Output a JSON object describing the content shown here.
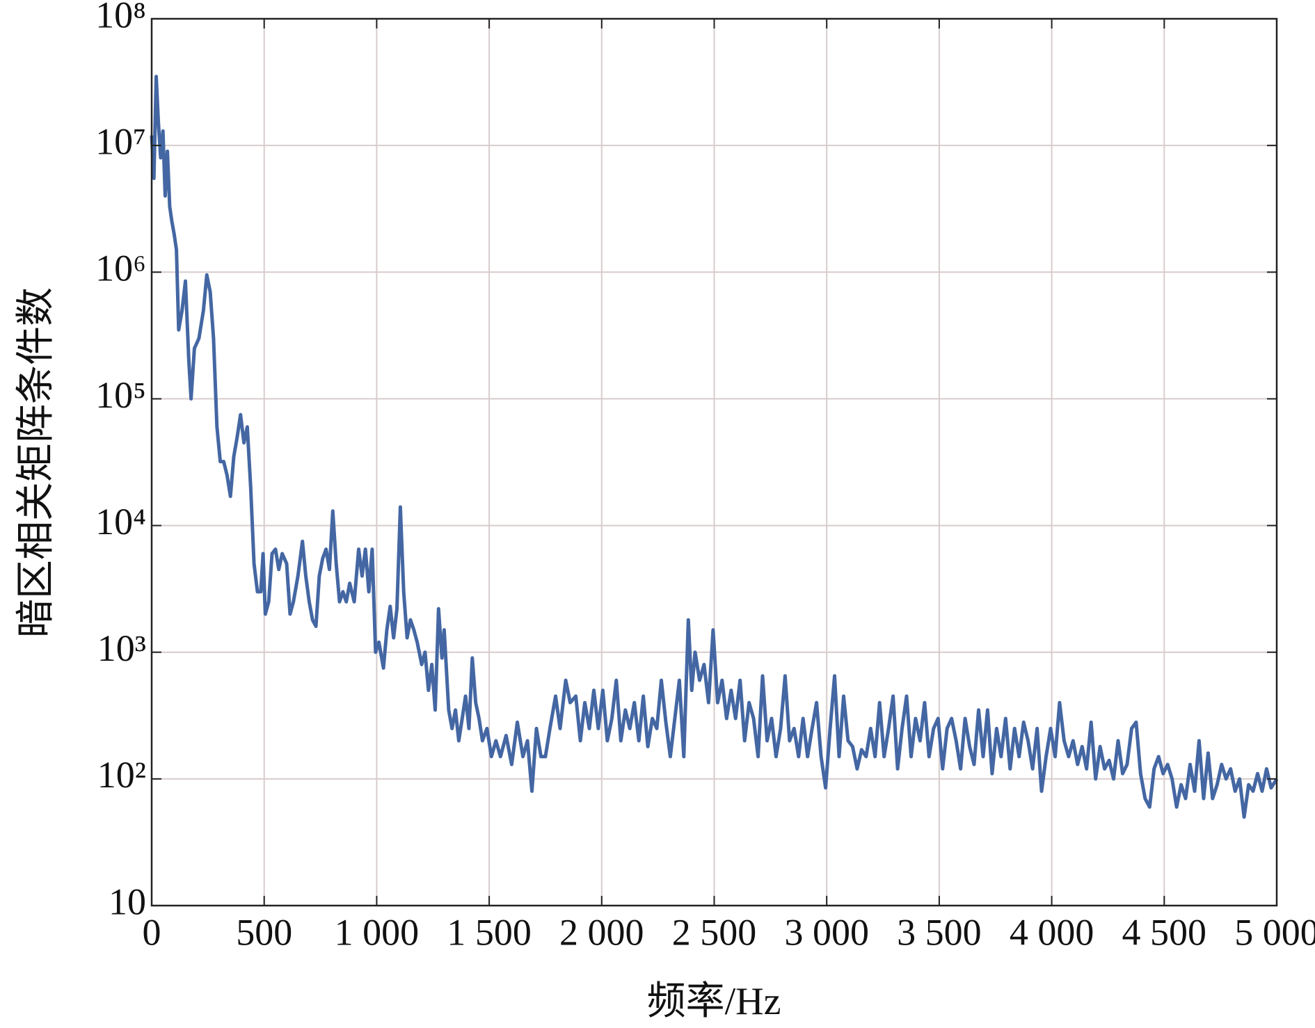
{
  "chart_data": {
    "type": "line",
    "xlabel": "频率/Hz",
    "ylabel": "暗区相关矩阵条件数",
    "ylog": true,
    "grid": true,
    "xlim": [
      0,
      5000
    ],
    "xticks": [
      0,
      500,
      {
        "value": 1000,
        "label": "1 000"
      },
      {
        "value": 1500,
        "label": "1 500"
      },
      {
        "value": 2000,
        "label": "2 000"
      },
      {
        "value": 2500,
        "label": "2 500"
      },
      {
        "value": 3000,
        "label": "3 000"
      },
      {
        "value": 3500,
        "label": "3 500"
      },
      {
        "value": 4000,
        "label": "4 000"
      },
      {
        "value": 4500,
        "label": "4 500"
      },
      {
        "value": 5000,
        "label": "5 000"
      }
    ],
    "ylim": [
      10,
      100000000
    ],
    "yticks": [
      10,
      {
        "value": 100,
        "label": "10²"
      },
      {
        "value": 1000,
        "label": "10³"
      },
      {
        "value": 10000,
        "label": "10⁴"
      },
      {
        "value": 100000,
        "label": "10⁵"
      },
      {
        "value": 1000000,
        "label": "10⁶"
      },
      {
        "value": 10000000,
        "label": "10⁷"
      },
      {
        "value": 100000000,
        "label": "10⁸"
      }
    ],
    "series": [
      {
        "color": "#4467a3",
        "x": [
          0,
          10,
          20,
          30,
          40,
          50,
          60,
          70,
          80,
          90,
          100,
          110,
          120,
          135,
          150,
          165,
          175,
          190,
          210,
          230,
          245,
          260,
          275,
          290,
          305,
          320,
          335,
          350,
          365,
          380,
          395,
          410,
          425,
          440,
          455,
          470,
          485,
          495,
          505,
          520,
          535,
          550,
          565,
          580,
          600,
          615,
          630,
          650,
          670,
          685,
          700,
          715,
          730,
          745,
          760,
          775,
          790,
          805,
          820,
          835,
          850,
          865,
          880,
          900,
          920,
          935,
          950,
          965,
          980,
          995,
          1010,
          1030,
          1045,
          1060,
          1075,
          1090,
          1105,
          1120,
          1135,
          1150,
          1165,
          1180,
          1200,
          1215,
          1230,
          1245,
          1260,
          1275,
          1290,
          1300,
          1320,
          1335,
          1350,
          1365,
          1380,
          1395,
          1410,
          1425,
          1440,
          1455,
          1470,
          1490,
          1510,
          1530,
          1550,
          1575,
          1600,
          1625,
          1650,
          1670,
          1690,
          1710,
          1730,
          1750,
          1770,
          1795,
          1815,
          1840,
          1860,
          1885,
          1905,
          1925,
          1945,
          1965,
          1985,
          2005,
          2025,
          2045,
          2065,
          2085,
          2105,
          2125,
          2145,
          2165,
          2185,
          2205,
          2225,
          2245,
          2265,
          2285,
          2305,
          2325,
          2345,
          2365,
          2385,
          2400,
          2415,
          2435,
          2455,
          2475,
          2495,
          2515,
          2535,
          2555,
          2575,
          2595,
          2615,
          2635,
          2655,
          2675,
          2695,
          2715,
          2735,
          2755,
          2775,
          2795,
          2815,
          2835,
          2855,
          2875,
          2895,
          2915,
          2935,
          2955,
          2975,
          2995,
          3015,
          3035,
          3055,
          3075,
          3095,
          3115,
          3135,
          3155,
          3175,
          3195,
          3215,
          3235,
          3255,
          3275,
          3295,
          3315,
          3335,
          3355,
          3375,
          3395,
          3415,
          3435,
          3455,
          3475,
          3495,
          3515,
          3535,
          3555,
          3575,
          3595,
          3615,
          3635,
          3655,
          3675,
          3695,
          3715,
          3735,
          3755,
          3775,
          3795,
          3815,
          3835,
          3855,
          3875,
          3895,
          3915,
          3935,
          3955,
          3975,
          3995,
          4015,
          4035,
          4055,
          4075,
          4095,
          4115,
          4135,
          4155,
          4175,
          4195,
          4215,
          4235,
          4255,
          4275,
          4295,
          4315,
          4335,
          4355,
          4375,
          4395,
          4415,
          4435,
          4455,
          4475,
          4495,
          4515,
          4535,
          4555,
          4575,
          4595,
          4615,
          4635,
          4655,
          4675,
          4695,
          4715,
          4735,
          4755,
          4775,
          4795,
          4815,
          4835,
          4855,
          4875,
          4895,
          4915,
          4935,
          4955,
          4975,
          5000
        ],
        "values": [
          12000000,
          5500000,
          35000000,
          15000000,
          8000000,
          13000000,
          4000000,
          9000000,
          3300000,
          2500000,
          2000000,
          1500000,
          350000,
          500000,
          850000,
          200000,
          100000,
          250000,
          300000,
          500000,
          950000,
          700000,
          300000,
          60000,
          32000,
          32000,
          25000,
          17000,
          35000,
          50000,
          75000,
          45000,
          60000,
          20000,
          5000,
          3000,
          3000,
          6000,
          2000,
          2500,
          6000,
          6500,
          4500,
          6000,
          5000,
          2000,
          2500,
          4000,
          7500,
          4000,
          2500,
          1800,
          1600,
          4000,
          5500,
          6500,
          4500,
          13000,
          5000,
          2500,
          3000,
          2500,
          3500,
          2500,
          6500,
          4000,
          6500,
          3000,
          6500,
          1000,
          1200,
          750,
          1500,
          2300,
          1300,
          2200,
          14000,
          3000,
          1300,
          1800,
          1500,
          1200,
          800,
          1000,
          500,
          800,
          350,
          2200,
          900,
          1500,
          350,
          250,
          350,
          200,
          300,
          450,
          250,
          900,
          400,
          300,
          200,
          250,
          150,
          200,
          150,
          220,
          130,
          280,
          150,
          200,
          80,
          250,
          150,
          150,
          250,
          450,
          250,
          600,
          400,
          450,
          200,
          400,
          250,
          500,
          250,
          500,
          200,
          300,
          600,
          200,
          350,
          250,
          400,
          200,
          450,
          180,
          300,
          250,
          600,
          280,
          150,
          300,
          600,
          150,
          1800,
          500,
          1000,
          600,
          800,
          400,
          1500,
          400,
          600,
          300,
          500,
          300,
          600,
          200,
          400,
          300,
          150,
          650,
          200,
          300,
          150,
          250,
          650,
          200,
          250,
          150,
          300,
          150,
          250,
          400,
          150,
          85,
          250,
          650,
          150,
          450,
          200,
          180,
          120,
          170,
          150,
          250,
          150,
          400,
          150,
          250,
          450,
          120,
          250,
          450,
          150,
          300,
          200,
          400,
          150,
          250,
          300,
          120,
          250,
          300,
          200,
          120,
          300,
          180,
          130,
          350,
          150,
          350,
          110,
          250,
          150,
          300,
          120,
          250,
          150,
          280,
          200,
          120,
          250,
          80,
          150,
          250,
          150,
          400,
          200,
          150,
          200,
          130,
          180,
          120,
          280,
          100,
          180,
          120,
          140,
          100,
          200,
          110,
          130,
          250,
          280,
          110,
          70,
          60,
          120,
          150,
          110,
          130,
          100,
          60,
          90,
          70,
          130,
          80,
          200,
          70,
          160,
          70,
          90,
          130,
          100,
          120,
          80,
          100,
          50,
          90,
          80,
          110,
          80,
          120,
          85,
          100
        ]
      }
    ]
  }
}
